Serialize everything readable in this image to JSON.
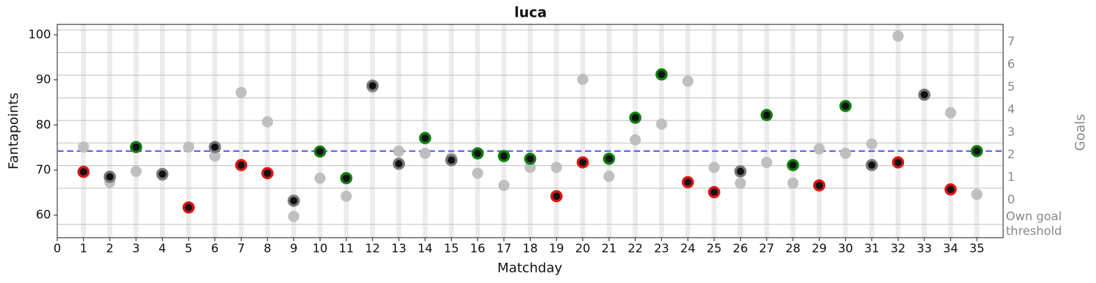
{
  "chart_data": {
    "type": "scatter",
    "title": "luca",
    "xlabel": "Matchday",
    "ylabel": "Fantapoints",
    "y2label": "Goals",
    "x": [
      1,
      2,
      3,
      4,
      5,
      6,
      7,
      8,
      9,
      10,
      11,
      12,
      13,
      14,
      15,
      16,
      17,
      18,
      19,
      20,
      21,
      22,
      23,
      24,
      25,
      26,
      27,
      28,
      29,
      30,
      31,
      32,
      33,
      34,
      35
    ],
    "xlim": [
      0,
      36
    ],
    "xticks": [
      0,
      1,
      2,
      3,
      4,
      5,
      6,
      7,
      8,
      9,
      10,
      11,
      12,
      13,
      14,
      15,
      16,
      17,
      18,
      19,
      20,
      21,
      22,
      23,
      24,
      25,
      26,
      27,
      28,
      29,
      30,
      31,
      32,
      33,
      34,
      35
    ],
    "ylim": [
      55,
      102.3
    ],
    "yticks": [
      60,
      70,
      80,
      90,
      100
    ],
    "y2lim": [
      -2.19,
      7.25
    ],
    "y2ticks": [
      {
        "value": -1.6,
        "label": "Own goal threshold"
      },
      0,
      1,
      2,
      3,
      4,
      5,
      6,
      7
    ],
    "grid": true,
    "reference_line": {
      "value": 74.2,
      "color": "#6b6bf0"
    },
    "series": [
      {
        "color": "#bdbdbd",
        "values": [
          75.1,
          67.3,
          69.7,
          68.8,
          75.1,
          73.1,
          87.2,
          80.7,
          59.7,
          68.2,
          64.2,
          88.3,
          74.2,
          73.7,
          72.7,
          69.3,
          66.6,
          70.6,
          70.6,
          90.1,
          68.6,
          76.7,
          80.2,
          89.7,
          70.6,
          67.1,
          71.7,
          67.1,
          74.7,
          73.7,
          75.8,
          99.7,
          86.7,
          82.7,
          64.6
        ]
      },
      {
        "color": "#111111",
        "edge_colors": [
          "#e01515",
          "#777777",
          "#0f7f0f",
          "#777777",
          "#e01515",
          "#777777",
          "#e01515",
          "#e01515",
          "#777777",
          "#0f7f0f",
          "#0f7f0f",
          "#777777",
          "#777777",
          "#0f7f0f",
          "#777777",
          "#0f7f0f",
          "#0f7f0f",
          "#0f7f0f",
          "#e01515",
          "#e01515",
          "#0f7f0f",
          "#0f7f0f",
          "#0f7f0f",
          "#e01515",
          "#e01515",
          "#777777",
          "#0f7f0f",
          "#0f7f0f",
          "#e01515",
          "#0f7f0f",
          "#777777",
          "#e01515",
          "#777777",
          "#e01515",
          "#0f7f0f"
        ],
        "values": [
          69.6,
          68.5,
          75.1,
          69.1,
          61.7,
          75.1,
          71.1,
          69.3,
          63.2,
          74.1,
          68.2,
          88.7,
          71.4,
          77.1,
          72.2,
          73.7,
          73.1,
          72.5,
          64.2,
          71.7,
          72.5,
          81.6,
          91.2,
          67.3,
          65.1,
          69.7,
          82.2,
          71.1,
          66.6,
          84.2,
          71.1,
          71.7,
          86.7,
          65.7,
          74.2
        ]
      }
    ]
  }
}
